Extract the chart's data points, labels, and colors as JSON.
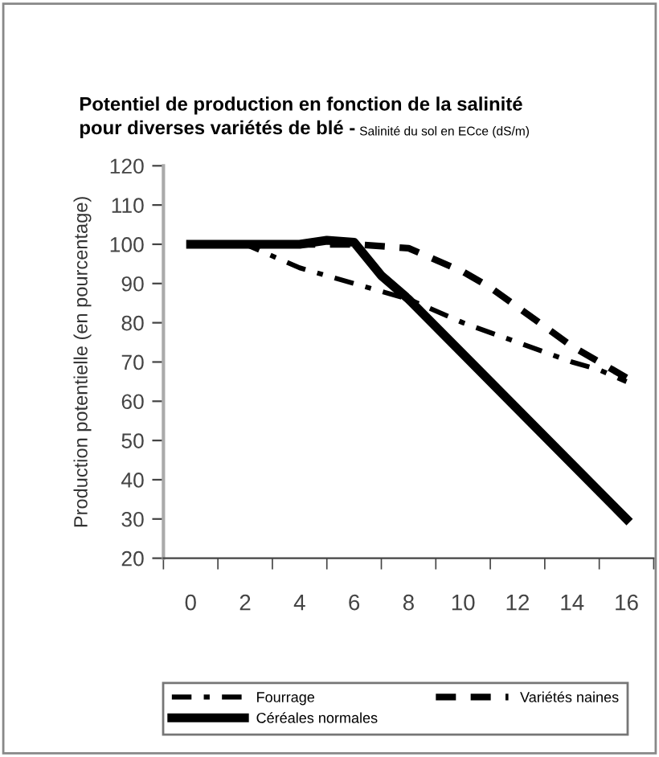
{
  "chart_data": {
    "type": "line",
    "title": "Potentiel de production en fonction de la salinité\npour diverses variétés de blé - ",
    "xlabel": "Salinité du sol en ECce (dS/m)",
    "ylabel": "Production potentielle (en pourcentage)",
    "xlim": [
      -1,
      17
    ],
    "xticks": [
      {
        "value": -1,
        "label": null
      },
      0,
      {
        "value": 1,
        "label": null
      },
      2,
      {
        "value": 3,
        "label": null
      },
      4,
      {
        "value": 5,
        "label": null
      },
      6,
      {
        "value": 7,
        "label": null
      },
      8,
      {
        "value": 9,
        "label": null
      },
      10,
      {
        "value": 11,
        "label": null
      },
      12,
      {
        "value": 13,
        "label": null
      },
      14,
      {
        "value": 15,
        "label": null
      },
      16,
      {
        "value": 17,
        "label": null
      }
    ],
    "ylim": [
      20,
      120
    ],
    "yticks": [
      20,
      30,
      40,
      50,
      60,
      70,
      80,
      90,
      100,
      110,
      120
    ],
    "grid": false,
    "legend": "bottom",
    "series": [
      {
        "name": "Fourrage",
        "color": "#000000",
        "line_style": "dashdot",
        "x": [
          0,
          2,
          4,
          6,
          8,
          10,
          12,
          14,
          15,
          16
        ],
        "values": [
          100,
          100,
          94,
          90,
          86,
          80,
          75,
          70,
          68,
          65
        ]
      },
      {
        "name": "Variétés naines",
        "color": "#000000",
        "line_style": "dashed",
        "x": [
          0,
          6,
          8,
          10,
          11,
          12,
          14,
          15,
          16
        ],
        "values": [
          100,
          100,
          99,
          93,
          89,
          84,
          74,
          70,
          66
        ]
      },
      {
        "name": "Céréales normales",
        "color": "#000000",
        "line_style": "solid",
        "x": [
          0,
          4,
          5,
          6,
          7,
          8,
          10,
          16
        ],
        "values": [
          100,
          100,
          101,
          100.5,
          92,
          86,
          72,
          30
        ]
      }
    ]
  }
}
